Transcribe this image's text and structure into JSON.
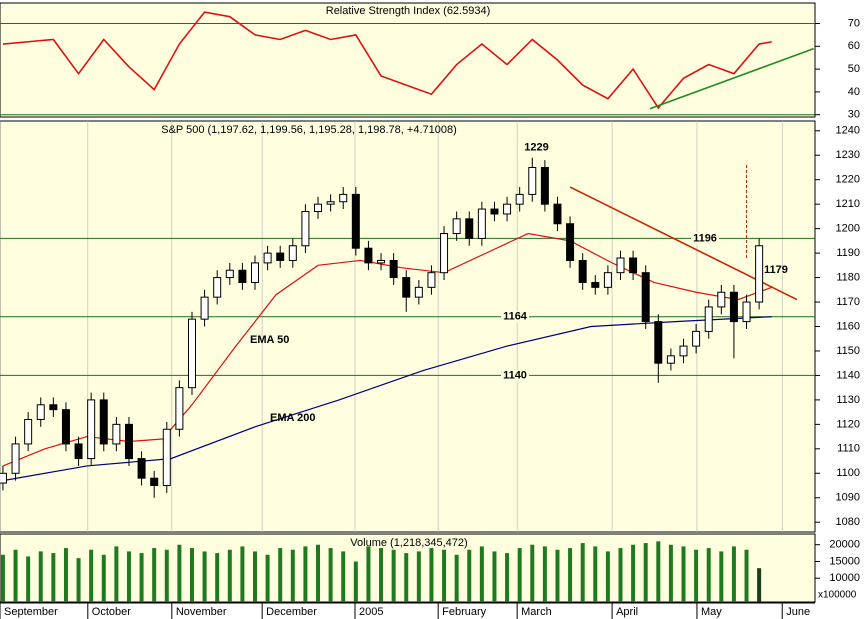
{
  "chart_data": [
    {
      "type": "line",
      "title": "Relative Strength Index (62.5934)",
      "ylim": [
        29,
        79
      ],
      "yticks": [
        30,
        40,
        50,
        60,
        70
      ],
      "levels": [
        70,
        30
      ],
      "level_color": "#1f6f1f",
      "series": [
        {
          "color": "#dd1111",
          "x": [
            0,
            6,
            12,
            18,
            24,
            30,
            36,
            42,
            48,
            54,
            60,
            66,
            72,
            78,
            84,
            90,
            96,
            102,
            108,
            114,
            120,
            126,
            132,
            138,
            144,
            150,
            156,
            162,
            168,
            174,
            180,
            183
          ],
          "values": [
            61,
            62,
            63,
            48,
            63,
            51,
            41,
            61,
            75,
            73,
            65,
            63,
            67,
            63,
            65,
            47,
            43,
            39,
            52,
            61,
            52,
            63,
            54,
            43,
            37,
            50,
            33,
            46,
            52,
            48,
            61,
            62
          ]
        }
      ],
      "trendline": {
        "x": [
          154,
          193
        ],
        "values": [
          32.6,
          59
        ],
        "color": "#228b22"
      }
    },
    {
      "type": "candlestick",
      "title": "S&P 500 (1,197.62, 1,199.56, 1,195.28, 1,198.78, +4.71008)",
      "xlim": [
        -0.7,
        193.3
      ],
      "ylim": [
        1076,
        1244
      ],
      "yticks": [
        1080,
        1090,
        1100,
        1110,
        1120,
        1130,
        1140,
        1150,
        1160,
        1170,
        1180,
        1190,
        1200,
        1210,
        1220,
        1230,
        1240
      ],
      "xticks": [
        {
          "value": -0.7,
          "label": "September"
        },
        {
          "value": 20.2,
          "label": "October"
        },
        {
          "value": 40.2,
          "label": "November"
        },
        {
          "value": 61.7,
          "label": "December"
        },
        {
          "value": 83.8,
          "label": "2005"
        },
        {
          "value": 103.6,
          "label": "February"
        },
        {
          "value": 122.4,
          "label": "March"
        },
        {
          "value": 145,
          "label": "April"
        },
        {
          "value": 165.2,
          "label": "May"
        },
        {
          "value": 185.5,
          "label": "June"
        }
      ],
      "x": [
        0,
        3,
        6,
        9,
        12,
        15,
        18,
        21,
        24,
        27,
        30,
        33,
        36,
        39,
        42,
        45,
        48,
        51,
        54,
        57,
        60,
        63,
        66,
        69,
        72,
        75,
        78,
        81,
        84,
        87,
        90,
        93,
        96,
        99,
        102,
        105,
        108,
        111,
        114,
        117,
        120,
        123,
        126,
        129,
        132,
        135,
        138,
        141,
        144,
        147,
        150,
        153,
        156,
        159,
        162,
        165,
        168,
        171,
        174,
        177,
        180
      ],
      "open": [
        1096,
        1100,
        1112,
        1122,
        1128,
        1126,
        1112,
        1106,
        1130,
        1112,
        1120,
        1106,
        1098,
        1095,
        1118,
        1135,
        1163,
        1172,
        1180,
        1183,
        1178,
        1186,
        1190,
        1187,
        1193,
        1207,
        1210,
        1211,
        1214,
        1192,
        1186,
        1187,
        1180,
        1172,
        1176,
        1182,
        1198,
        1204,
        1196,
        1208,
        1206,
        1210,
        1214,
        1225,
        1210,
        1202,
        1187,
        1178,
        1176,
        1182,
        1188,
        1182,
        1162,
        1145,
        1148,
        1152,
        1158,
        1168,
        1174,
        1162,
        1170
      ],
      "high": [
        1103,
        1115,
        1125,
        1131,
        1131,
        1129,
        1115,
        1133,
        1133,
        1123,
        1123,
        1109,
        1101,
        1121,
        1138,
        1166,
        1175,
        1183,
        1186,
        1186,
        1189,
        1193,
        1193,
        1196,
        1210,
        1213,
        1214,
        1217,
        1217,
        1195,
        1190,
        1190,
        1183,
        1179,
        1185,
        1201,
        1207,
        1207,
        1211,
        1211,
        1213,
        1217,
        1229,
        1228,
        1213,
        1205,
        1190,
        1181,
        1185,
        1191,
        1191,
        1185,
        1165,
        1151,
        1155,
        1161,
        1171,
        1177,
        1177,
        1173,
        1196
      ],
      "low": [
        1093,
        1097,
        1109,
        1119,
        1123,
        1109,
        1103,
        1103,
        1109,
        1109,
        1103,
        1095,
        1090,
        1092,
        1115,
        1132,
        1160,
        1169,
        1177,
        1175,
        1175,
        1183,
        1184,
        1184,
        1190,
        1204,
        1207,
        1208,
        1189,
        1183,
        1183,
        1177,
        1166,
        1169,
        1173,
        1179,
        1195,
        1193,
        1193,
        1203,
        1203,
        1207,
        1211,
        1207,
        1199,
        1184,
        1175,
        1173,
        1173,
        1179,
        1179,
        1159,
        1137,
        1142,
        1145,
        1149,
        1155,
        1165,
        1147,
        1159,
        1167
      ],
      "close": [
        1100,
        1112,
        1122,
        1128,
        1126,
        1112,
        1106,
        1130,
        1112,
        1120,
        1106,
        1098,
        1095,
        1118,
        1135,
        1163,
        1172,
        1180,
        1183,
        1178,
        1186,
        1190,
        1187,
        1193,
        1207,
        1210,
        1211,
        1214,
        1192,
        1186,
        1187,
        1180,
        1172,
        1176,
        1182,
        1198,
        1204,
        1196,
        1208,
        1206,
        1210,
        1214,
        1225,
        1210,
        1202,
        1187,
        1178,
        1176,
        1182,
        1188,
        1182,
        1162,
        1145,
        1148,
        1152,
        1158,
        1168,
        1174,
        1162,
        1170,
        1193
      ],
      "series": [
        {
          "name": "EMA 50",
          "color": "#dd1111",
          "x": [
            0,
            10,
            20,
            30,
            38,
            45,
            55,
            65,
            75,
            85,
            95,
            105,
            115,
            125,
            135,
            145,
            155,
            165,
            175,
            183
          ],
          "values": [
            1103,
            1110,
            1115,
            1113,
            1114,
            1128,
            1151,
            1173,
            1185,
            1187,
            1184,
            1182,
            1190,
            1198,
            1195,
            1186,
            1178,
            1174,
            1171,
            1176
          ]
        },
        {
          "name": "EMA 200",
          "color": "#000080",
          "x": [
            0,
            20,
            40,
            60,
            80,
            100,
            120,
            140,
            160,
            183
          ],
          "values": [
            1097,
            1103,
            1106,
            1119,
            1130,
            1142,
            1152,
            1160,
            1162,
            1164
          ]
        }
      ],
      "levels": [
        1196,
        1164,
        1140
      ],
      "level_color": "#1f6f1f",
      "annotations": [
        {
          "value": 1229,
          "x": 127,
          "color": "#cc2200"
        },
        {
          "value": 1179,
          "x": 184,
          "color": "#8b1a00"
        }
      ],
      "trendline": {
        "x": [
          135,
          189
        ],
        "values": [
          1217,
          1171
        ],
        "color": "#cc2200"
      },
      "marker_line": {
        "x": 177,
        "values": [
          1226,
          1188
        ],
        "color": "#cc2200"
      }
    },
    {
      "type": "bar",
      "title": "Volume (1,218,345,472)",
      "color": "#1f7a1f",
      "ylim": [
        2900,
        23200
      ],
      "yticks": [
        20000,
        15000,
        10000
      ],
      "scale_label": "x100000",
      "x": [
        0,
        3,
        6,
        9,
        12,
        15,
        18,
        21,
        24,
        27,
        30,
        33,
        36,
        39,
        42,
        45,
        48,
        51,
        54,
        57,
        60,
        63,
        66,
        69,
        72,
        75,
        78,
        81,
        84,
        87,
        90,
        93,
        96,
        99,
        102,
        105,
        108,
        111,
        114,
        117,
        120,
        123,
        126,
        129,
        132,
        135,
        138,
        141,
        144,
        147,
        150,
        153,
        156,
        159,
        162,
        165,
        168,
        171,
        174,
        177,
        180
      ],
      "values": [
        17000,
        18500,
        16500,
        18000,
        17500,
        19000,
        16000,
        18500,
        17000,
        19500,
        18000,
        17500,
        19000,
        18500,
        20000,
        19000,
        18000,
        17500,
        18500,
        19500,
        18000,
        17000,
        19000,
        18500,
        19500,
        20000,
        19000,
        18000,
        15000,
        19500,
        19000,
        18500,
        17500,
        18000,
        19000,
        18500,
        17000,
        18500,
        19500,
        18000,
        17500,
        19000,
        20000,
        19500,
        18500,
        19000,
        20500,
        19500,
        18000,
        19000,
        20000,
        20500,
        21000,
        20000,
        19500,
        18500,
        19000,
        18000,
        19500,
        18500,
        13000
      ]
    }
  ]
}
